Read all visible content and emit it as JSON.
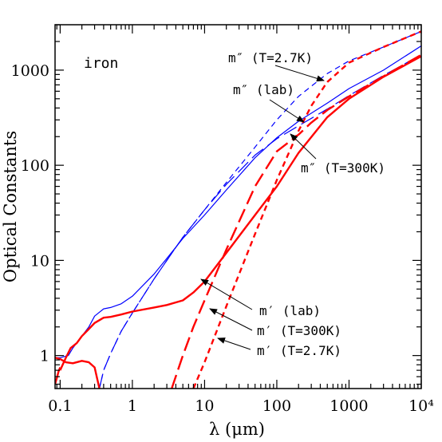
{
  "chart_data": {
    "type": "line",
    "title": "",
    "panel_label": "iron",
    "xlabel": "λ (μm)",
    "ylabel": "Optical Constants",
    "xscale": "log",
    "yscale": "log",
    "xlim": [
      0.085,
      10000
    ],
    "ylim": [
      0.45,
      3000
    ],
    "x_ticks": [
      {
        "value": 0.1,
        "label": "0.1"
      },
      {
        "value": 1,
        "label": "1"
      },
      {
        "value": 10,
        "label": "10"
      },
      {
        "value": 100,
        "label": "100"
      },
      {
        "value": 1000,
        "label": "1000"
      },
      {
        "value": 10000,
        "label": "10⁴"
      }
    ],
    "y_ticks": [
      {
        "value": 1,
        "label": "1"
      },
      {
        "value": 10,
        "label": "10"
      },
      {
        "value": 100,
        "label": "100"
      },
      {
        "value": 1000,
        "label": "1000"
      }
    ],
    "colors": {
      "red": "#ff0000",
      "blue": "#0000ff",
      "axis": "#000000"
    },
    "series": [
      {
        "key": "mpp_lab",
        "color": "#0000ff",
        "dash": "solid",
        "width": 1.2,
        "x": [
          0.085,
          0.1,
          0.13,
          0.15,
          0.2,
          0.25,
          0.3,
          0.4,
          0.5,
          0.7,
          1,
          2,
          3,
          5,
          10,
          20,
          50,
          100,
          200,
          500,
          1000,
          3000,
          10000
        ],
        "y": [
          0.95,
          0.95,
          1.0,
          1.2,
          1.6,
          2.0,
          2.6,
          3.1,
          3.2,
          3.5,
          4.2,
          7.2,
          10.5,
          17,
          30,
          55,
          120,
          195,
          290,
          450,
          640,
          1000,
          1800
        ]
      },
      {
        "key": "mpp_300",
        "color": "#0000ff",
        "dash": "long",
        "width": 1.2,
        "x": [
          0.35,
          0.4,
          0.5,
          0.7,
          1,
          2,
          3,
          5,
          10,
          20,
          50,
          100,
          200,
          500,
          1000,
          3000,
          10000
        ],
        "y": [
          0.45,
          0.7,
          1.05,
          1.8,
          2.8,
          6.4,
          10,
          17.5,
          34,
          63,
          128,
          190,
          260,
          390,
          540,
          880,
          1450
        ]
      },
      {
        "key": "mpp_2.7",
        "color": "#0000ff",
        "dash": "short",
        "width": 1.2,
        "x": [
          0.35,
          0.4,
          0.5,
          0.7,
          1,
          2,
          3,
          5,
          10,
          20,
          50,
          100,
          200,
          500,
          1000,
          3000,
          10000
        ],
        "y": [
          0.45,
          0.7,
          1.05,
          1.8,
          2.8,
          6.4,
          10,
          17.5,
          34,
          66,
          155,
          300,
          530,
          920,
          1250,
          1750,
          2550
        ]
      },
      {
        "key": "mp_lab",
        "color": "#ff0000",
        "dash": "solid",
        "width": 2.4,
        "x": [
          0.1,
          0.12,
          0.14,
          0.17,
          0.2,
          0.25,
          0.3,
          0.4,
          0.5,
          0.7,
          1,
          2,
          3,
          5,
          7,
          10,
          20,
          50,
          100,
          200,
          500,
          1000,
          3000,
          10000
        ],
        "y": [
          0.7,
          0.95,
          1.2,
          1.35,
          1.6,
          1.9,
          2.2,
          2.5,
          2.55,
          2.7,
          2.9,
          3.2,
          3.4,
          3.8,
          4.6,
          6.0,
          12,
          30,
          60,
          135,
          320,
          500,
          850,
          1400
        ]
      },
      {
        "key": "mp_lab_uv",
        "color": "#ff0000",
        "dash": "solid",
        "width": 2.4,
        "x": [
          0.085,
          0.1,
          0.12,
          0.15,
          0.2,
          0.25,
          0.3,
          0.35
        ],
        "y": [
          0.95,
          0.92,
          0.85,
          0.83,
          0.88,
          0.85,
          0.75,
          0.45
        ]
      },
      {
        "key": "mp_lab_dip",
        "color": "#ff0000",
        "dash": "solid",
        "width": 2.4,
        "x": [
          0.085,
          0.09,
          0.095,
          0.1
        ],
        "y": [
          0.5,
          0.58,
          0.68,
          0.75
        ]
      },
      {
        "key": "mp_300",
        "color": "#ff0000",
        "dash": "long",
        "width": 2.4,
        "x": [
          3.5,
          5,
          7,
          10,
          20,
          50,
          100,
          200,
          300,
          500,
          1000,
          3000,
          10000
        ],
        "y": [
          0.45,
          1.0,
          2.0,
          3.8,
          13,
          60,
          140,
          210,
          280,
          380,
          530,
          860,
          1450
        ]
      },
      {
        "key": "mp_2.7",
        "color": "#ff0000",
        "dash": "short",
        "width": 2.4,
        "x": [
          7,
          10,
          20,
          50,
          100,
          200,
          300,
          500,
          1000,
          3000,
          10000
        ],
        "y": [
          0.45,
          0.85,
          3.3,
          19,
          70,
          230,
          420,
          750,
          1200,
          1750,
          2550
        ]
      }
    ],
    "annotations": [
      {
        "text": "m″ (T=2.7K)"
      },
      {
        "text": "m″ (lab)"
      },
      {
        "text": "m″ (T=300K)"
      },
      {
        "text": "m′ (lab)"
      },
      {
        "text": "m′ (T=300K)"
      },
      {
        "text": "m′ (T=2.7K)"
      }
    ]
  }
}
